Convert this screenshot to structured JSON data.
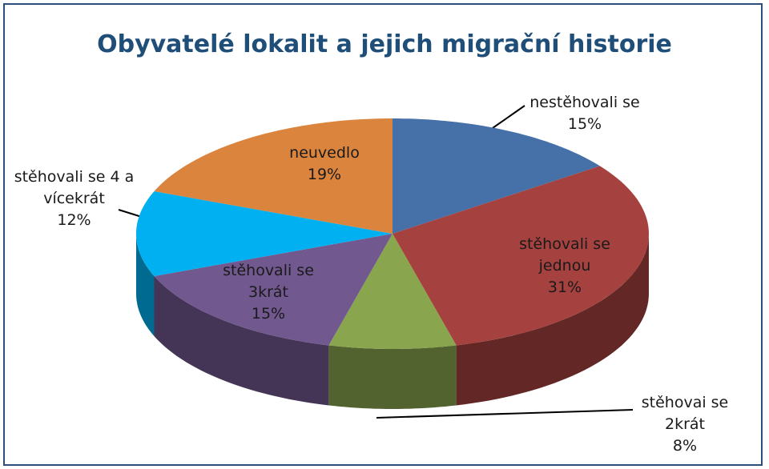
{
  "chart_data": {
    "type": "pie",
    "title": "Obyvatelé lokalit a jejich migrační historie",
    "categories": [
      "nestěhovali se",
      "stěhovali se jednou",
      "stěhovai se 2krát",
      "stěhovali se 3krát",
      "stěhovali se 4 a vícekrát",
      "neuvedlo"
    ],
    "values": [
      15,
      31,
      8,
      15,
      12,
      19
    ],
    "value_labels": [
      "15%",
      "31%",
      "8%",
      "15%",
      "12%",
      "19%"
    ],
    "colors": [
      "#4670a8",
      "#a5413f",
      "#89a54e",
      "#71588f",
      "#00b0f0",
      "#db843d"
    ]
  }
}
